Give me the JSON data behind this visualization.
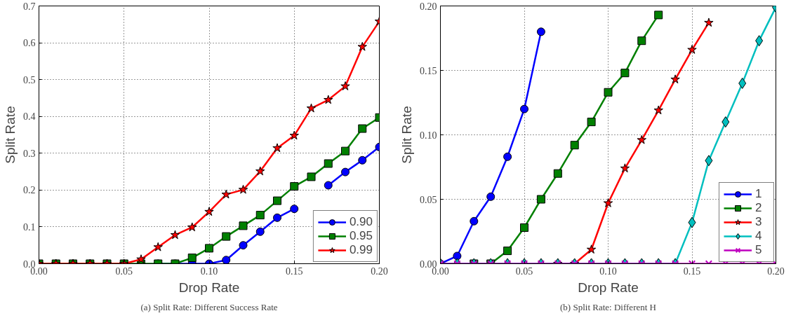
{
  "chart_data": [
    {
      "type": "line",
      "title": "(a) Split Rate: Different Success Rate",
      "xlabel": "Drop Rate",
      "ylabel": "Split Rate",
      "x": [
        0,
        0.01,
        0.02,
        0.03,
        0.04,
        0.05,
        0.06,
        0.07,
        0.08,
        0.09,
        0.1,
        0.11,
        0.12,
        0.13,
        0.14,
        0.15,
        0.16,
        0.17,
        0.18,
        0.19,
        0.2
      ],
      "series": [
        {
          "name": "0.90",
          "color": "#0000ff",
          "marker": "circle",
          "values": [
            null,
            null,
            null,
            null,
            null,
            null,
            null,
            0,
            0,
            0,
            0,
            0.01,
            0.05,
            0.087,
            0.125,
            0.149,
            null,
            0.213,
            0.249,
            0.281,
            0.317
          ]
        },
        {
          "name": "0.95",
          "color": "#008000",
          "marker": "square",
          "values": [
            0,
            0,
            0,
            0,
            0,
            0,
            0,
            0,
            0,
            0.016,
            0.042,
            0.074,
            0.103,
            0.132,
            0.171,
            0.21,
            0.236,
            0.272,
            0.306,
            0.367,
            0.397
          ]
        },
        {
          "name": "0.99",
          "color": "#ff0000",
          "marker": "star",
          "values": [
            0,
            0,
            0,
            0,
            0,
            0,
            0.012,
            0.045,
            0.078,
            0.099,
            0.141,
            0.188,
            0.201,
            0.251,
            0.314,
            0.348,
            0.422,
            0.445,
            0.482,
            0.589,
            0.658
          ]
        }
      ],
      "xlim": [
        0,
        0.2
      ],
      "xticks": [
        {
          "value": 0,
          "label": "0.00"
        },
        {
          "value": 0.05,
          "label": "0.05"
        },
        {
          "value": 0.1,
          "label": "0.10"
        },
        {
          "value": 0.15,
          "label": "0.15"
        },
        {
          "value": 0.2,
          "label": "0.20"
        }
      ],
      "ylim": [
        0,
        0.7
      ],
      "yticks": [
        {
          "value": 0,
          "label": "0.0"
        },
        0.1,
        0.2,
        0.3,
        0.4,
        0.5,
        0.6,
        0.7
      ],
      "grid": true,
      "legend": "bottom right",
      "line_style": "solid"
    },
    {
      "type": "line",
      "title": "(b) Split Rate: Different H",
      "xlabel": "Drop Rate",
      "ylabel": "Split Rate",
      "x": [
        0,
        0.01,
        0.02,
        0.03,
        0.04,
        0.05,
        0.06,
        0.07,
        0.08,
        0.09,
        0.1,
        0.11,
        0.12,
        0.13,
        0.14,
        0.15,
        0.16,
        0.17,
        0.18,
        0.19,
        0.2
      ],
      "series": [
        {
          "name": "1",
          "color": "#0000ff",
          "marker": "circle",
          "values": [
            0,
            0.006,
            0.033,
            0.052,
            0.083,
            0.12,
            0.18,
            null,
            null,
            null,
            null,
            null,
            null,
            null,
            null,
            null,
            null,
            null,
            null,
            null,
            null
          ]
        },
        {
          "name": "2",
          "color": "#008000",
          "marker": "square",
          "values": [
            null,
            null,
            0,
            0,
            0.01,
            0.028,
            0.05,
            0.07,
            0.092,
            0.11,
            0.133,
            0.148,
            0.173,
            0.193,
            null,
            null,
            null,
            null,
            null,
            null,
            null
          ]
        },
        {
          "name": "3",
          "color": "#ff0000",
          "marker": "star",
          "values": [
            null,
            null,
            null,
            null,
            null,
            null,
            null,
            0,
            0,
            0.011,
            0.047,
            0.074,
            0.096,
            0.119,
            0.143,
            0.166,
            0.187,
            null,
            null,
            null,
            null
          ]
        },
        {
          "name": "4",
          "color": "#00bfbf",
          "marker": "diamond",
          "values": [
            0,
            0,
            0,
            0,
            0,
            0,
            0,
            0,
            0,
            0,
            0,
            0,
            0,
            0,
            0,
            0.032,
            0.08,
            0.11,
            0.14,
            0.173,
            0.199
          ]
        },
        {
          "name": "5",
          "color": "#bf00bf",
          "marker": "cross",
          "values": [
            0,
            0,
            0,
            0,
            0,
            0,
            0,
            0,
            0,
            0,
            0,
            0,
            0,
            0,
            0,
            0,
            0,
            0,
            0,
            0,
            0
          ]
        }
      ],
      "xlim": [
        0,
        0.2
      ],
      "xticks": [
        {
          "value": 0,
          "label": "0.00"
        },
        {
          "value": 0.05,
          "label": "0.05"
        },
        {
          "value": 0.1,
          "label": "0.10"
        },
        {
          "value": 0.15,
          "label": "0.15"
        },
        {
          "value": 0.2,
          "label": "0.20"
        }
      ],
      "ylim": [
        0,
        0.2
      ],
      "yticks": [
        {
          "value": 0,
          "label": "0.00"
        },
        {
          "value": 0.05,
          "label": "0.05"
        },
        {
          "value": 0.1,
          "label": "0.10"
        },
        {
          "value": 0.15,
          "label": "0.15"
        },
        {
          "value": 0.2,
          "label": "0.20"
        }
      ],
      "grid": true,
      "legend": "bottom right",
      "line_style": "solid"
    }
  ]
}
